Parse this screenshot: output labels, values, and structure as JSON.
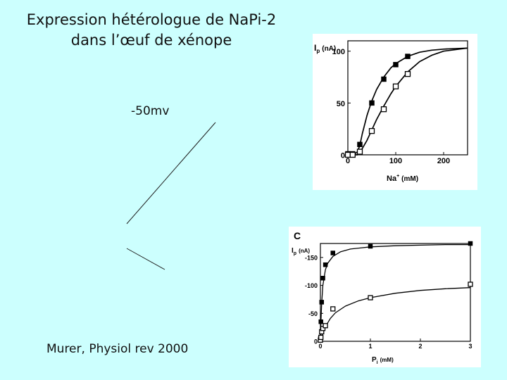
{
  "slide": {
    "title_line1": "Expression hétérologue de NaPi-2",
    "title_line2": "dans l’œuf de xénope",
    "voltage_label": "-50mv",
    "citation": "Murer, Physiol rev 2000"
  },
  "chart_data": [
    {
      "type": "scatter",
      "panel_label": "",
      "ylabel_main": "I",
      "ylabel_sub": "p",
      "ylabel_unit": "(nA)",
      "xlabel_main": "Na",
      "xlabel_sup": "+",
      "xlabel_unit": "(mM)",
      "xlim": [
        0,
        250
      ],
      "ylim": [
        0,
        110
      ],
      "xticks": [
        0,
        100,
        200
      ],
      "yticks": [
        0,
        50,
        100
      ],
      "series": [
        {
          "marker": "filled-square",
          "x": [
            0,
            10,
            25,
            50,
            75,
            100,
            125
          ],
          "y": [
            1,
            1,
            10,
            50,
            73,
            87,
            95
          ]
        },
        {
          "marker": "open-square",
          "x": [
            0,
            10,
            25,
            50,
            75,
            100,
            125
          ],
          "y": [
            0,
            0,
            3,
            23,
            44,
            66,
            78
          ]
        }
      ],
      "fits": [
        {
          "x": [
            0,
            15,
            20,
            25,
            30,
            40,
            50,
            60,
            75,
            90,
            100,
            125,
            150,
            175,
            200,
            250
          ],
          "y": [
            0,
            1,
            3,
            9,
            20,
            38,
            52,
            63,
            75,
            84,
            88,
            95,
            99,
            101,
            102,
            103
          ]
        },
        {
          "x": [
            0,
            20,
            25,
            30,
            40,
            50,
            60,
            75,
            90,
            100,
            125,
            150,
            175,
            200,
            250
          ],
          "y": [
            0,
            0,
            2,
            6,
            14,
            24,
            34,
            47,
            59,
            66,
            80,
            90,
            96,
            100,
            103
          ]
        }
      ]
    },
    {
      "type": "scatter",
      "panel_label": "C",
      "ylabel_main": "I",
      "ylabel_sub": "p",
      "ylabel_unit": "(nA)",
      "xlabel_main": "P",
      "xlabel_sub": "i",
      "xlabel_unit": "(mM)",
      "xlim": [
        0,
        3
      ],
      "ylim": [
        0,
        175
      ],
      "xticks": [
        0,
        1,
        2,
        3
      ],
      "xtick_labels": [
        "0",
        "1",
        "2",
        "3"
      ],
      "yticks": [
        0,
        50,
        100,
        150
      ],
      "ytick_labels": [
        "0",
        "-50",
        "-100",
        "-150"
      ],
      "series": [
        {
          "marker": "filled-square",
          "x": [
            0,
            0.01,
            0.025,
            0.05,
            0.1,
            0.25,
            1,
            3
          ],
          "y": [
            5,
            35,
            70,
            113,
            137,
            158,
            170,
            175
          ]
        },
        {
          "marker": "open-square",
          "x": [
            0,
            0.01,
            0.025,
            0.05,
            0.1,
            0.25,
            1,
            3
          ],
          "y": [
            2,
            7,
            17,
            23,
            28,
            58,
            78,
            102
          ]
        }
      ],
      "fits": [
        {
          "x": [
            0,
            0.01,
            0.025,
            0.05,
            0.1,
            0.15,
            0.25,
            0.4,
            0.6,
            1,
            1.5,
            2,
            2.5,
            3
          ],
          "y": [
            0,
            34,
            68,
            100,
            128,
            140,
            152,
            160,
            165,
            169,
            171,
            172,
            173,
            173
          ]
        },
        {
          "x": [
            0,
            0.025,
            0.05,
            0.1,
            0.2,
            0.3,
            0.5,
            0.75,
            1,
            1.5,
            2,
            2.5,
            3
          ],
          "y": [
            0,
            8,
            15,
            26,
            41,
            51,
            63,
            72,
            78,
            86,
            91,
            94,
            96
          ]
        }
      ]
    }
  ]
}
